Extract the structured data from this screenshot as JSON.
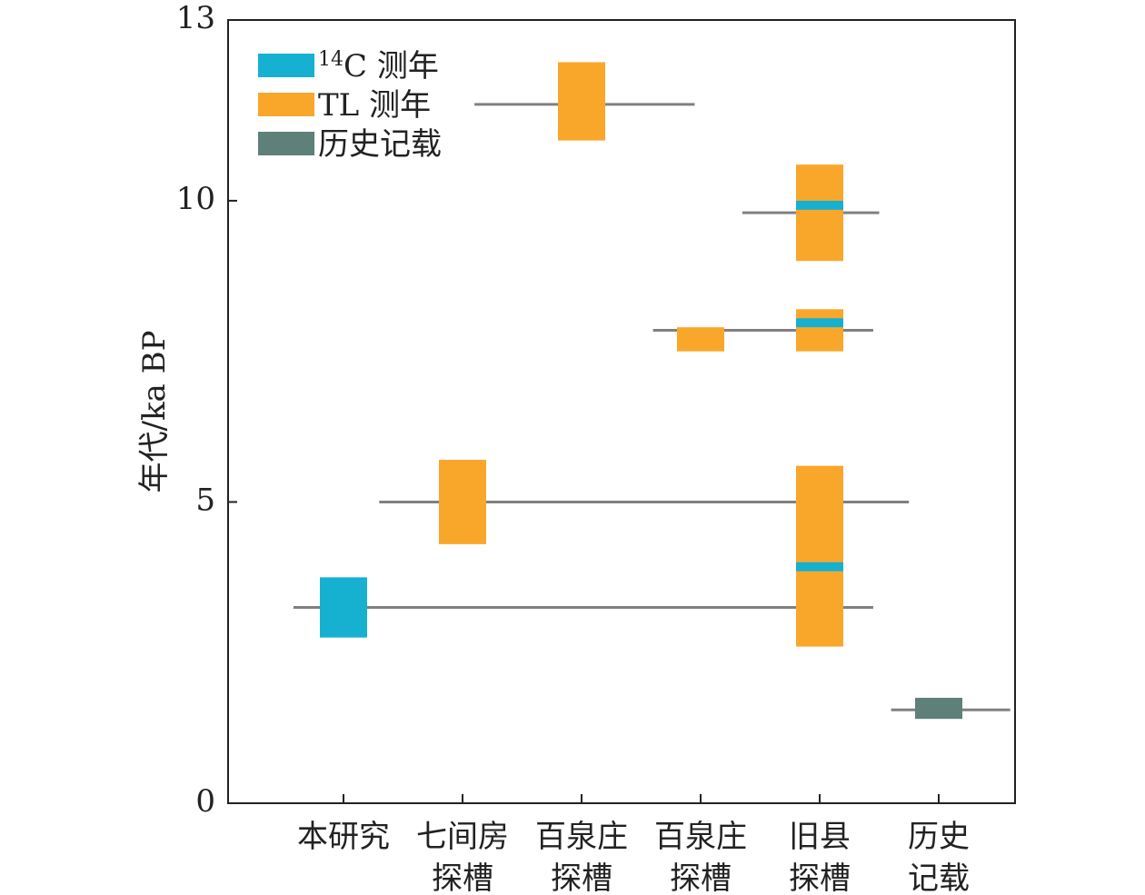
{
  "chart_data": {
    "type": "range-bar",
    "title": "",
    "ylabel": "年代/ka BP",
    "xlabel": "",
    "ylim": [
      0,
      13
    ],
    "y_ticks": [
      0,
      5,
      10,
      13
    ],
    "grid": false,
    "legend_placement": "top-left",
    "colors": {
      "c14": "#16b0d0",
      "tl": "#f9a72b",
      "history": "#5f7f79",
      "line": "#808080"
    },
    "legend": [
      {
        "key": "c14",
        "sup": "14",
        "label": "C 测年"
      },
      {
        "key": "tl",
        "sup": "",
        "label": "TL 测年"
      },
      {
        "key": "history",
        "sup": "",
        "label": "历史记载"
      }
    ],
    "categories": [
      {
        "line1": "本研究",
        "line2": ""
      },
      {
        "line1": "七间房",
        "line2": "探槽"
      },
      {
        "line1": "百泉庄",
        "line2": "探槽"
      },
      {
        "line1": "百泉庄",
        "line2": "探槽"
      },
      {
        "line1": "旧县",
        "line2": "探槽"
      },
      {
        "line1": "历史",
        "line2": "记载"
      }
    ],
    "events": [
      {
        "y": 3.25,
        "x_from": -0.42,
        "x_to": 4.45
      },
      {
        "y": 5.0,
        "x_from": 0.3,
        "x_to": 4.75
      },
      {
        "y": 11.6,
        "x_from": 1.1,
        "x_to": 2.95
      },
      {
        "y": 7.85,
        "x_from": 2.6,
        "x_to": 4.45
      },
      {
        "y": 9.8,
        "x_from": 3.35,
        "x_to": 4.5
      },
      {
        "y": 1.55,
        "x_from": 4.6,
        "x_to": 5.6
      }
    ],
    "ranges": [
      {
        "category": 0,
        "type": "c14",
        "low": 2.75,
        "high": 3.75
      },
      {
        "category": 1,
        "type": "tl",
        "low": 4.3,
        "high": 5.7
      },
      {
        "category": 2,
        "type": "tl",
        "low": 11.0,
        "high": 12.3
      },
      {
        "category": 3,
        "type": "tl",
        "low": 7.5,
        "high": 7.9
      },
      {
        "category": 4,
        "type": "tl",
        "low": 9.0,
        "high": 10.6
      },
      {
        "category": 4,
        "type": "c14",
        "low": 9.85,
        "high": 10.0
      },
      {
        "category": 4,
        "type": "tl",
        "low": 7.5,
        "high": 8.2
      },
      {
        "category": 4,
        "type": "c14",
        "low": 7.9,
        "high": 8.05
      },
      {
        "category": 4,
        "type": "tl",
        "low": 2.6,
        "high": 5.6
      },
      {
        "category": 4,
        "type": "c14",
        "low": 3.85,
        "high": 4.0
      },
      {
        "category": 5,
        "type": "history",
        "low": 1.4,
        "high": 1.75
      }
    ]
  }
}
